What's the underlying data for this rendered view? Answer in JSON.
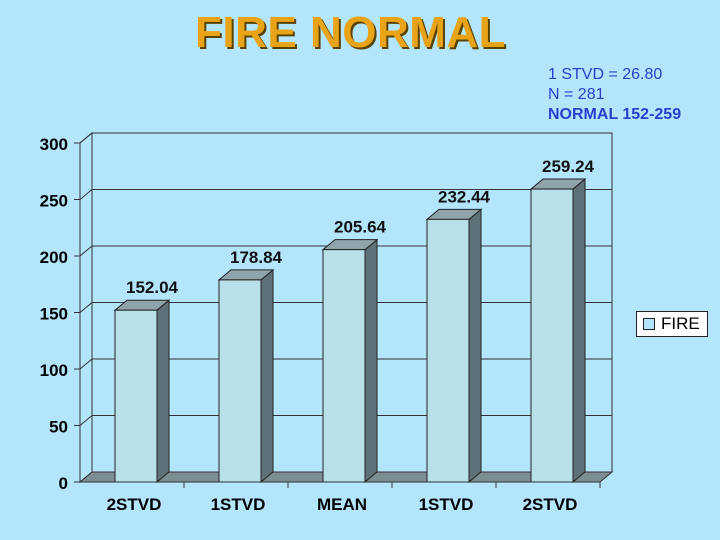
{
  "title": "FIRE NORMAL",
  "stats": {
    "stvd": "1 STVD = 26.80",
    "n": "N = 281",
    "normal": "NORMAL 152-259"
  },
  "legend": {
    "label": "FIRE"
  },
  "colors": {
    "background": "#b3e5fc",
    "title": "#e8a317",
    "stats_text": "#2a3fd0",
    "bar_front": "#b8e0e8",
    "bar_side": "#5f7178",
    "bar_top": "#8fa4ab",
    "wall": "#b3e5fc",
    "floor": "#7c8e93"
  },
  "chart_data": {
    "type": "bar",
    "categories": [
      "2STVD",
      "1STVD",
      "MEAN",
      "1STVD",
      "2STVD"
    ],
    "series": [
      {
        "name": "FIRE",
        "values": [
          152.04,
          178.84,
          205.64,
          232.44,
          259.24
        ]
      }
    ],
    "data_labels": [
      "152.04",
      "178.84",
      "205.64",
      "232.44",
      "259.24"
    ],
    "ylim": [
      0,
      300
    ],
    "yticks": [
      0,
      50,
      100,
      150,
      200,
      250,
      300
    ],
    "grid": true,
    "legend_position": "right"
  }
}
